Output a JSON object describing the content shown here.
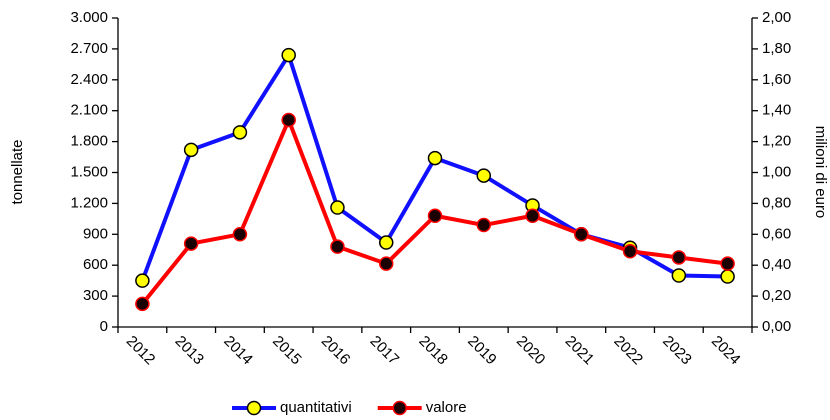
{
  "chart_data": {
    "type": "line",
    "categories": [
      "2012",
      "2013",
      "2014",
      "2015",
      "2016",
      "2017",
      "2018",
      "2019",
      "2020",
      "2021",
      "2022",
      "2023",
      "2024"
    ],
    "ylabel": "tonnellate",
    "y2label": "milioni di euro",
    "ylim": [
      0,
      3000
    ],
    "yticks": [
      {
        "value": 0,
        "label": "0"
      },
      {
        "value": 300,
        "label": "300"
      },
      {
        "value": 600,
        "label": "600"
      },
      {
        "value": 900,
        "label": "900"
      },
      {
        "value": 1200,
        "label": "1.200"
      },
      {
        "value": 1500,
        "label": "1.500"
      },
      {
        "value": 1800,
        "label": "1.800"
      },
      {
        "value": 2100,
        "label": "2.100"
      },
      {
        "value": 2400,
        "label": "2.400"
      },
      {
        "value": 2700,
        "label": "2.700"
      },
      {
        "value": 3000,
        "label": "3.000"
      }
    ],
    "y2lim": [
      0,
      2
    ],
    "y2ticks": [
      {
        "value": 0,
        "label": "0,00"
      },
      {
        "value": 0.2,
        "label": "0,20"
      },
      {
        "value": 0.4,
        "label": "0,40"
      },
      {
        "value": 0.6,
        "label": "0,60"
      },
      {
        "value": 0.8,
        "label": "0,80"
      },
      {
        "value": 1,
        "label": "1,00"
      },
      {
        "value": 1.2,
        "label": "1,20"
      },
      {
        "value": 1.4,
        "label": "1,40"
      },
      {
        "value": 1.6,
        "label": "1,60"
      },
      {
        "value": 1.8,
        "label": "1,80"
      },
      {
        "value": 2,
        "label": "2,00"
      }
    ],
    "grid": false,
    "legend": "bottom",
    "series": [
      {
        "name": "quantitativi",
        "color": "#1010ff",
        "marker_color": "#ffff00",
        "values": [
          450,
          1720,
          1890,
          2640,
          1160,
          820,
          1640,
          1470,
          1180,
          900,
          770,
          500,
          490
        ]
      },
      {
        "name": "valore",
        "color": "#ff0000",
        "marker_color": "#1a0000",
        "axis": "y2",
        "values": [
          0.15,
          0.54,
          0.6,
          1.34,
          0.52,
          0.41,
          0.72,
          0.66,
          0.72,
          0.6,
          0.49,
          0.45,
          0.41
        ]
      }
    ]
  }
}
